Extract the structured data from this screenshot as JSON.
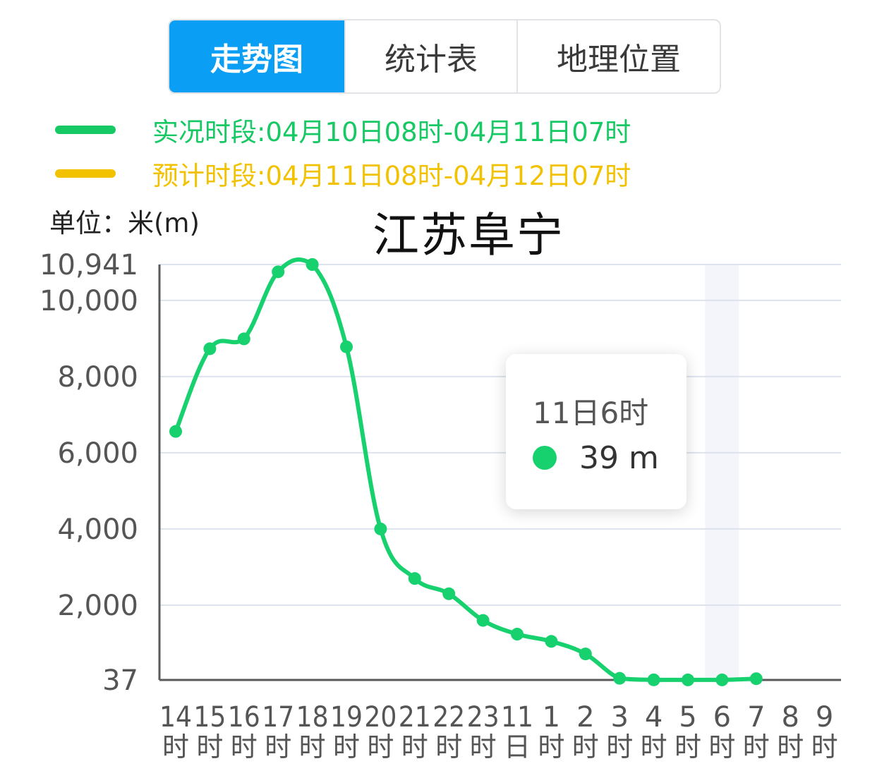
{
  "tabs": [
    {
      "label": "走势图",
      "active": true
    },
    {
      "label": "统计表",
      "active": false
    },
    {
      "label": "地理位置",
      "active": false
    }
  ],
  "legend": {
    "observed": {
      "label": "实况时段:04月10日08时-04月11日07时",
      "color": "#17c964"
    },
    "forecast": {
      "label": "预计时段:04月11日08时-04月12日07时",
      "color": "#f2c200"
    }
  },
  "unit_label": "单位：米(m)",
  "title": "江苏阜宁",
  "tooltip": {
    "title": "11日6时",
    "value": "39 m"
  },
  "colors": {
    "line": "#17d16f",
    "axis": "#5a5a5a",
    "grid": "#dde3ee",
    "highlight": "#f3f5fb"
  },
  "chart_data": {
    "type": "line",
    "title": "江苏阜宁",
    "ylabel": "单位：米(m)",
    "ylim": [
      37,
      10941
    ],
    "y_ticks": [
      {
        "value": 37,
        "label": "37"
      },
      {
        "value": 2000,
        "label": "2,000"
      },
      {
        "value": 4000,
        "label": "4,000"
      },
      {
        "value": 6000,
        "label": "6,000"
      },
      {
        "value": 8000,
        "label": "8,000"
      },
      {
        "value": 10000,
        "label": "10,000"
      },
      {
        "value": 10941,
        "label": "10,941"
      }
    ],
    "categories": [
      [
        "14",
        "时"
      ],
      [
        "15",
        "时"
      ],
      [
        "16",
        "时"
      ],
      [
        "17",
        "时"
      ],
      [
        "18",
        "时"
      ],
      [
        "19",
        "时"
      ],
      [
        "20",
        "时"
      ],
      [
        "21",
        "时"
      ],
      [
        "22",
        "时"
      ],
      [
        "23",
        "时"
      ],
      [
        "11",
        "日"
      ],
      [
        "1",
        "时"
      ],
      [
        "2",
        "时"
      ],
      [
        "3",
        "时"
      ],
      [
        "4",
        "时"
      ],
      [
        "5",
        "时"
      ],
      [
        "6",
        "时"
      ],
      [
        "7",
        "时"
      ],
      [
        "8",
        "时"
      ],
      [
        "9",
        "时"
      ]
    ],
    "series": [
      {
        "values": [
          6560,
          8730,
          8990,
          10750,
          10941,
          8780,
          4000,
          2700,
          2300,
          1600,
          1240,
          1050,
          720,
          80,
          40,
          39,
          39,
          70,
          null,
          null
        ]
      }
    ],
    "highlight_index": 16,
    "grid": true
  }
}
